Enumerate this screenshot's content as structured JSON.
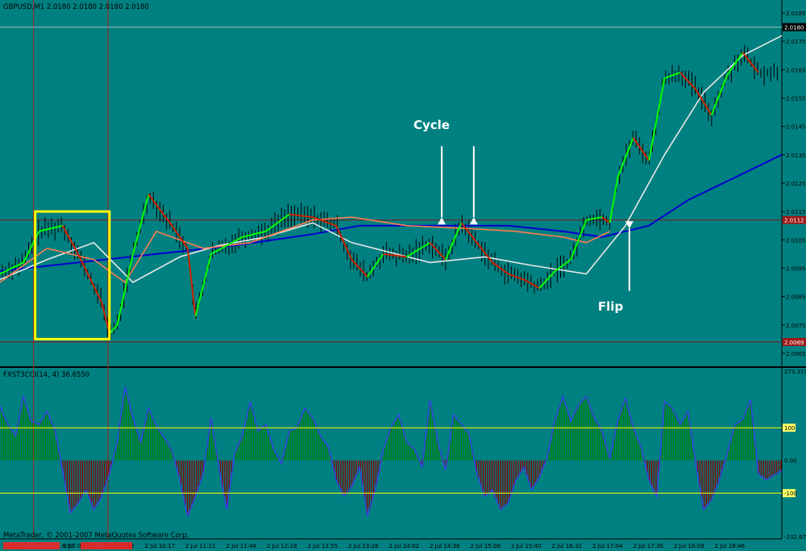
{
  "window": {
    "main_header": "GBPUSD,M1  2.0180 2.0180 2.0180 2.0180",
    "indicator_header": "FXST3CCI(14, 4) 36.6550",
    "copyright": "MetaTrader, © 2001-2007 MetaQuotes Software Corp."
  },
  "colors": {
    "background": "#008080",
    "candle": "#000000",
    "trend_up": "#00ff00",
    "trend_down": "#cc2200",
    "ma_fast": "#ff7f50",
    "ma_mid": "#e8e8e8",
    "ma_slow": "#0000cd",
    "cci_positive": "#008000",
    "cci_negative": "#8b0000",
    "cci_line": "#3a3af0",
    "level_lines": "#ffff00",
    "highlight_box": "#ffff00",
    "annotation": "#ffffff"
  },
  "chart_data": [
    {
      "type": "line",
      "title": "GBPUSD,M1",
      "price_axis": [
        "2.0185",
        "2.0175",
        "2.0165",
        "2.0155",
        "2.0145",
        "2.0135",
        "2.0125",
        "2.0115",
        "2.0105",
        "2.0095",
        "2.0085",
        "2.0075",
        "2.0065"
      ],
      "ylim": [
        2.0061,
        2.0189
      ],
      "price_markers": [
        {
          "label": "2.0180",
          "value": 2.018
        },
        {
          "label": "2.0112",
          "value": 2.0112
        },
        {
          "label": "2.0069",
          "value": 2.0069
        }
      ],
      "time_labels": [
        "2 Jul ...",
        "...8:07",
        "2 Jul 09:13",
        "2 Jul 09:45",
        "2 Jul 10:17",
        "2 Jul 11:11",
        "2 Jul 11:46",
        "2 Jul 12:18",
        "2 Jul 12:55",
        "2 Jul 13:28",
        "2 Jul 14:02",
        "2 Jul 14:36",
        "2 Jul 15:08",
        "2 Jul 15:40",
        "2 Jul 16:32",
        "2 Jul 17:04",
        "2 Jul 17:36",
        "2 Jul 18:09",
        "2 Jul 18:46"
      ],
      "x_range": [
        0,
        100
      ],
      "close_series": [
        [
          0,
          2.0093
        ],
        [
          3,
          2.0097
        ],
        [
          5,
          2.0108
        ],
        [
          8,
          2.011
        ],
        [
          10,
          2.01
        ],
        [
          13,
          2.0083
        ],
        [
          14,
          2.0072
        ],
        [
          15,
          2.0075
        ],
        [
          17,
          2.01
        ],
        [
          19,
          2.0121
        ],
        [
          22,
          2.011
        ],
        [
          24,
          2.0102
        ],
        [
          25,
          2.0078
        ],
        [
          27,
          2.01
        ],
        [
          29,
          2.0103
        ],
        [
          31,
          2.0106
        ],
        [
          34,
          2.0108
        ],
        [
          37,
          2.0114
        ],
        [
          40,
          2.0113
        ],
        [
          43,
          2.011
        ],
        [
          45,
          2.0098
        ],
        [
          47,
          2.0092
        ],
        [
          49,
          2.01
        ],
        [
          52,
          2.0099
        ],
        [
          55,
          2.0104
        ],
        [
          57,
          2.0098
        ],
        [
          59,
          2.0111
        ],
        [
          61,
          2.0104
        ],
        [
          63,
          2.0097
        ],
        [
          65,
          2.0093
        ],
        [
          67,
          2.0091
        ],
        [
          69,
          2.0088
        ],
        [
          71,
          2.0094
        ],
        [
          73,
          2.0098
        ],
        [
          75,
          2.0112
        ],
        [
          77,
          2.0113
        ],
        [
          78,
          2.0111
        ],
        [
          79,
          2.0127
        ],
        [
          81,
          2.0141
        ],
        [
          83,
          2.0133
        ],
        [
          85,
          2.0162
        ],
        [
          87,
          2.0164
        ],
        [
          89,
          2.0158
        ],
        [
          91,
          2.0149
        ],
        [
          93,
          2.0163
        ],
        [
          95,
          2.0171
        ],
        [
          97,
          2.0164
        ]
      ],
      "ma_fast_series": [
        [
          0,
          2.009
        ],
        [
          6,
          2.0102
        ],
        [
          12,
          2.0098
        ],
        [
          16,
          2.009
        ],
        [
          20,
          2.0108
        ],
        [
          26,
          2.0102
        ],
        [
          32,
          2.0104
        ],
        [
          40,
          2.0112
        ],
        [
          45,
          2.0113
        ],
        [
          52,
          2.011
        ],
        [
          60,
          2.0109
        ],
        [
          66,
          2.0108
        ],
        [
          72,
          2.0106
        ],
        [
          75,
          2.0104
        ],
        [
          78,
          2.0108
        ]
      ],
      "ma_mid_series": [
        [
          0,
          2.0091
        ],
        [
          6,
          2.0098
        ],
        [
          12,
          2.0104
        ],
        [
          17,
          2.009
        ],
        [
          23,
          2.0099
        ],
        [
          28,
          2.0103
        ],
        [
          34,
          2.0106
        ],
        [
          40,
          2.0111
        ],
        [
          45,
          2.0104
        ],
        [
          55,
          2.0097
        ],
        [
          62,
          2.0099
        ],
        [
          68,
          2.0096
        ],
        [
          75,
          2.0093
        ],
        [
          80,
          2.011
        ],
        [
          85,
          2.0135
        ],
        [
          90,
          2.0157
        ],
        [
          95,
          2.017
        ],
        [
          100,
          2.0177
        ]
      ],
      "ma_slow_series": [
        [
          0,
          2.0094
        ],
        [
          10,
          2.0097
        ],
        [
          20,
          2.01
        ],
        [
          30,
          2.0103
        ],
        [
          40,
          2.0107
        ],
        [
          46,
          2.011
        ],
        [
          55,
          2.011
        ],
        [
          65,
          2.011
        ],
        [
          72,
          2.0108
        ],
        [
          77,
          2.0106
        ],
        [
          83,
          2.011
        ],
        [
          88,
          2.0119
        ],
        [
          94,
          2.0127
        ],
        [
          100,
          2.0135
        ]
      ],
      "annotations": [
        {
          "text": "Cycle",
          "x": 55.2,
          "y": 2.0144
        },
        {
          "text": "Flip",
          "x": 78.1,
          "y": 2.008
        }
      ]
    },
    {
      "type": "area",
      "title": "FXST3CCI(14, 4)",
      "ylim": [
        -232.674,
        273.315
      ],
      "axis_labels": [
        {
          "label": "273.315",
          "value": 273.315
        },
        {
          "label": "100",
          "value": 100
        },
        {
          "label": "0.00",
          "value": 0
        },
        {
          "label": "-100",
          "value": -100
        },
        {
          "label": "-232.674",
          "value": -232.674
        }
      ],
      "levels": [
        100,
        -100
      ],
      "x_range": [
        0,
        100
      ],
      "series": [
        [
          0,
          165
        ],
        [
          1,
          110
        ],
        [
          2,
          75
        ],
        [
          3,
          195
        ],
        [
          4,
          120
        ],
        [
          5,
          110
        ],
        [
          6,
          150
        ],
        [
          7,
          95
        ],
        [
          8,
          -30
        ],
        [
          9,
          -160
        ],
        [
          10,
          -130
        ],
        [
          11,
          -90
        ],
        [
          12,
          -150
        ],
        [
          13,
          -110
        ],
        [
          14,
          -40
        ],
        [
          15,
          55
        ],
        [
          16,
          225
        ],
        [
          17,
          130
        ],
        [
          18,
          55
        ],
        [
          19,
          160
        ],
        [
          20,
          105
        ],
        [
          21,
          70
        ],
        [
          22,
          30
        ],
        [
          23,
          -60
        ],
        [
          24,
          -170
        ],
        [
          25,
          -110
        ],
        [
          26,
          -40
        ],
        [
          27,
          130
        ],
        [
          28,
          -20
        ],
        [
          29,
          -150
        ],
        [
          30,
          20
        ],
        [
          31,
          75
        ],
        [
          32,
          180
        ],
        [
          33,
          90
        ],
        [
          34,
          110
        ],
        [
          35,
          35
        ],
        [
          36,
          -10
        ],
        [
          37,
          90
        ],
        [
          38,
          100
        ],
        [
          39,
          160
        ],
        [
          40,
          130
        ],
        [
          41,
          75
        ],
        [
          42,
          40
        ],
        [
          43,
          -60
        ],
        [
          44,
          -110
        ],
        [
          45,
          -80
        ],
        [
          46,
          -20
        ],
        [
          47,
          -170
        ],
        [
          48,
          -90
        ],
        [
          49,
          30
        ],
        [
          50,
          100
        ],
        [
          51,
          140
        ],
        [
          52,
          55
        ],
        [
          53,
          35
        ],
        [
          54,
          -20
        ],
        [
          55,
          185
        ],
        [
          56,
          55
        ],
        [
          57,
          -30
        ],
        [
          58,
          140
        ],
        [
          59,
          110
        ],
        [
          60,
          80
        ],
        [
          61,
          -40
        ],
        [
          62,
          -110
        ],
        [
          63,
          -90
        ],
        [
          64,
          -150
        ],
        [
          65,
          -130
        ],
        [
          66,
          -60
        ],
        [
          67,
          -20
        ],
        [
          68,
          -90
        ],
        [
          69,
          -50
        ],
        [
          70,
          10
        ],
        [
          71,
          125
        ],
        [
          72,
          195
        ],
        [
          73,
          120
        ],
        [
          74,
          170
        ],
        [
          75,
          195
        ],
        [
          76,
          130
        ],
        [
          77,
          90
        ],
        [
          78,
          5
        ],
        [
          79,
          120
        ],
        [
          80,
          190
        ],
        [
          81,
          100
        ],
        [
          82,
          40
        ],
        [
          83,
          -60
        ],
        [
          84,
          -110
        ],
        [
          85,
          180
        ],
        [
          86,
          160
        ],
        [
          87,
          110
        ],
        [
          88,
          150
        ],
        [
          89,
          -10
        ],
        [
          90,
          -150
        ],
        [
          91,
          -120
        ],
        [
          92,
          -60
        ],
        [
          93,
          20
        ],
        [
          94,
          110
        ],
        [
          95,
          125
        ],
        [
          96,
          185
        ],
        [
          97,
          -40
        ],
        [
          98,
          -60
        ],
        [
          99,
          -45
        ],
        [
          100,
          -30
        ]
      ]
    }
  ]
}
